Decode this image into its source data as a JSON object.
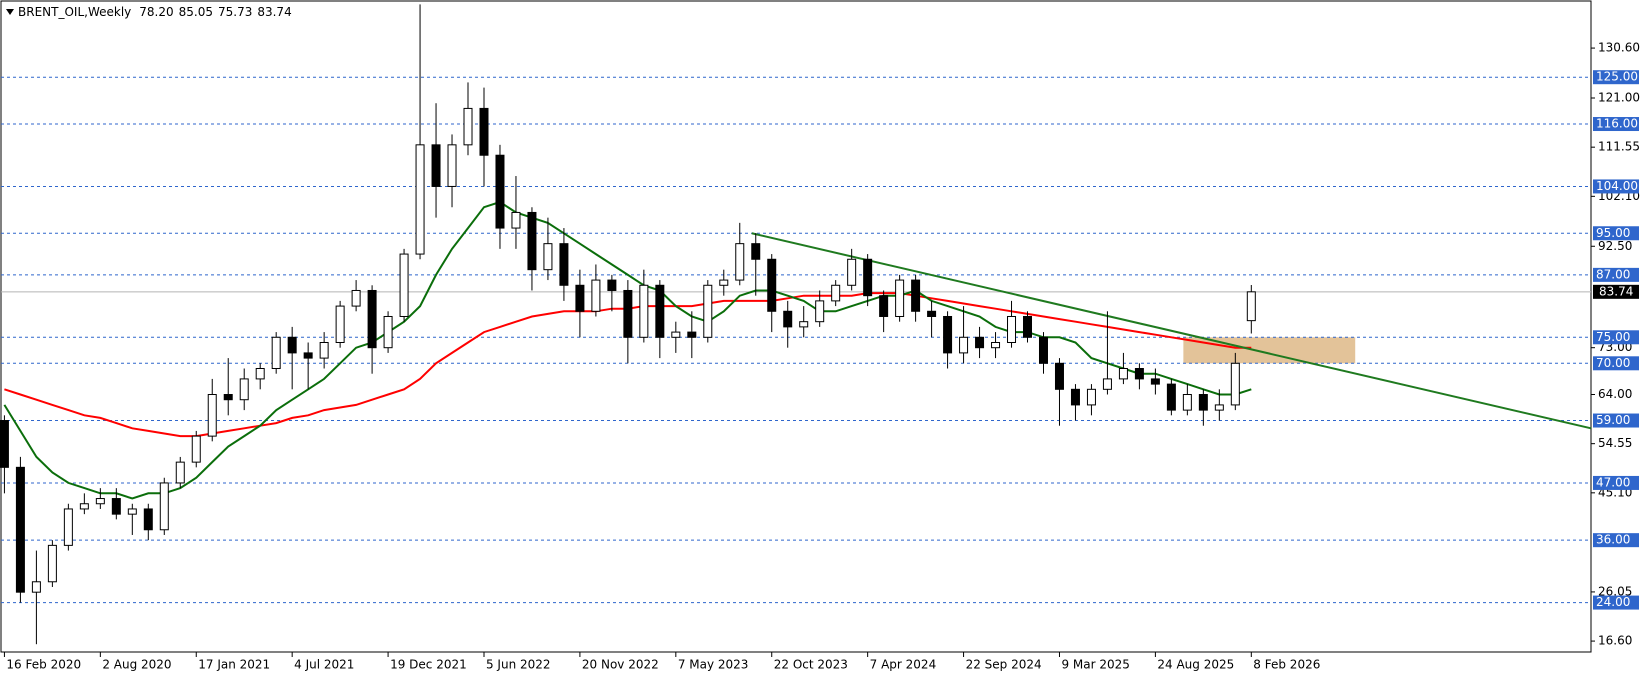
{
  "chart_data": {
    "type": "candlestick",
    "title": "BRENT_OIL,Weekly",
    "ohlc_labels": [
      "78.20",
      "85.05",
      "75.73",
      "83.74"
    ],
    "xlim": [
      "2020-02-10",
      "2027-09-26"
    ],
    "ylim": [
      14.5,
      139.65
    ],
    "xticks": [
      {
        "value": "2020-02-16",
        "label": "16 Feb 2020"
      },
      {
        "value": "2020-08-02",
        "label": "2 Aug 2020"
      },
      {
        "value": "2021-01-17",
        "label": "17 Jan 2021"
      },
      {
        "value": "2021-07-04",
        "label": "4 Jul 2021"
      },
      {
        "value": "2021-12-19",
        "label": "19 Dec 2021"
      },
      {
        "value": "2022-06-05",
        "label": "5 Jun 2022"
      },
      {
        "value": "2022-11-20",
        "label": "20 Nov 2022"
      },
      {
        "value": "2023-05-07",
        "label": "7 May 2023"
      },
      {
        "value": "2023-10-22",
        "label": "22 Oct 2023"
      },
      {
        "value": "2024-04-07",
        "label": "7 Apr 2024"
      },
      {
        "value": "2024-09-22",
        "label": "22 Sep 2024"
      },
      {
        "value": "2025-03-09",
        "label": "9 Mar 2025"
      },
      {
        "value": "2025-08-24",
        "label": "24 Aug 2025"
      },
      {
        "value": "2026-02-08",
        "label": "8 Feb 2026"
      }
    ],
    "yticks": [
      {
        "value": 130.6,
        "label": "130.60"
      },
      {
        "value": 121,
        "label": "121.00"
      },
      {
        "value": 111.55,
        "label": "111.55"
      },
      {
        "value": 102.1,
        "label": "102.10"
      },
      {
        "value": 92.5,
        "label": "92.50"
      },
      {
        "value": 73,
        "label": "73.00"
      },
      {
        "value": 64,
        "label": "64.00"
      },
      {
        "value": 54.55,
        "label": "54.55"
      },
      {
        "value": 45.1,
        "label": "45.10"
      },
      {
        "value": 26.05,
        "label": "26.05"
      },
      {
        "value": 16.6,
        "label": "16.60"
      }
    ],
    "levels": [
      {
        "value": 125,
        "label": "125.00"
      },
      {
        "value": 116,
        "label": "116.00"
      },
      {
        "value": 104,
        "label": "104.00"
      },
      {
        "value": 95,
        "label": "95.00"
      },
      {
        "value": 87,
        "label": "87.00"
      },
      {
        "value": 75,
        "label": "75.00"
      },
      {
        "value": 70,
        "label": "70.00"
      },
      {
        "value": 59,
        "label": "59.00"
      },
      {
        "value": 47,
        "label": "47.00"
      },
      {
        "value": 36,
        "label": "36.00"
      },
      {
        "value": 24,
        "label": "24.00"
      }
    ],
    "level_color": "#2f66cc",
    "last_price": {
      "value": 83.74,
      "label": "83.74"
    },
    "candles": {
      "x": [
        "2020-02-16",
        "2020-03-15",
        "2020-04-12",
        "2020-05-10",
        "2020-06-07",
        "2020-07-05",
        "2020-08-02",
        "2020-08-30",
        "2020-09-27",
        "2020-10-25",
        "2020-11-22",
        "2020-12-20",
        "2021-01-17",
        "2021-02-14",
        "2021-03-14",
        "2021-04-11",
        "2021-05-09",
        "2021-06-06",
        "2021-07-04",
        "2021-08-01",
        "2021-08-29",
        "2021-09-26",
        "2021-10-24",
        "2021-11-21",
        "2021-12-19",
        "2022-01-16",
        "2022-02-13",
        "2022-03-13",
        "2022-04-10",
        "2022-05-08",
        "2022-06-05",
        "2022-07-03",
        "2022-07-31",
        "2022-08-28",
        "2022-09-25",
        "2022-10-23",
        "2022-11-20",
        "2022-12-18",
        "2023-01-15",
        "2023-02-12",
        "2023-03-12",
        "2023-04-09",
        "2023-05-07",
        "2023-06-04",
        "2023-07-02",
        "2023-07-30",
        "2023-08-27",
        "2023-09-24",
        "2023-10-22",
        "2023-11-19",
        "2023-12-17",
        "2024-01-14",
        "2024-02-11",
        "2024-03-10",
        "2024-04-07",
        "2024-05-05",
        "2024-06-02",
        "2024-06-30",
        "2024-07-28",
        "2024-08-25",
        "2024-09-22",
        "2024-10-20",
        "2024-11-17",
        "2024-12-15",
        "2025-01-12",
        "2025-02-09",
        "2025-03-09",
        "2025-04-06",
        "2025-05-04",
        "2025-06-01",
        "2025-06-29",
        "2025-07-27",
        "2025-08-24",
        "2025-09-21",
        "2025-10-19",
        "2025-11-16",
        "2025-12-14",
        "2026-01-11",
        "2026-02-08"
      ],
      "open": [
        59,
        50,
        26,
        28,
        35,
        42,
        43,
        44,
        41,
        42,
        38,
        47,
        51,
        56,
        64,
        63,
        67,
        69,
        75,
        72,
        71,
        74,
        81,
        84,
        73,
        79,
        91,
        112,
        104,
        112,
        119,
        110,
        96,
        99,
        88,
        93,
        85,
        80,
        86,
        84,
        75,
        85,
        75,
        76,
        75,
        85,
        86,
        93,
        90,
        80,
        77,
        78,
        82,
        85,
        90,
        83,
        79,
        86,
        80,
        79,
        72,
        75,
        73,
        74,
        79,
        75,
        70,
        65,
        62,
        65,
        67,
        69,
        67,
        66,
        61,
        64,
        61,
        62,
        78.2
      ],
      "high": [
        60,
        52,
        34,
        36,
        43,
        45,
        46,
        46,
        43,
        43,
        48,
        52,
        57,
        67,
        71,
        69,
        70,
        76,
        77,
        74,
        76,
        82,
        86,
        85,
        80,
        92,
        139,
        120,
        114,
        124,
        123,
        112,
        106,
        100,
        98,
        96,
        88,
        89,
        87,
        86,
        88,
        86,
        78,
        80,
        86,
        88,
        97,
        95,
        91,
        82,
        81,
        84,
        86,
        92,
        91,
        84,
        87,
        87,
        82,
        80,
        81,
        77,
        76,
        82,
        80,
        76,
        71,
        66,
        66,
        80,
        72,
        70,
        69,
        67,
        66,
        65,
        65,
        72,
        85.05
      ],
      "low": [
        45,
        24,
        16,
        27,
        34,
        41,
        42,
        40,
        37,
        36,
        37,
        46,
        50,
        55,
        60,
        61,
        65,
        68,
        65,
        65,
        69,
        73,
        80,
        68,
        72,
        78,
        90,
        98,
        100,
        110,
        104,
        92,
        92,
        84,
        86,
        82,
        75,
        79,
        80,
        70,
        74,
        71,
        72,
        71,
        74,
        83,
        85,
        83,
        76,
        73,
        75,
        77,
        81,
        84,
        81,
        76,
        78,
        78,
        75,
        69,
        70,
        71,
        71,
        73,
        74,
        68,
        58,
        59,
        60,
        64,
        66,
        65,
        64,
        60,
        60,
        58,
        59,
        61,
        75.73
      ],
      "close": [
        50,
        26,
        28,
        35,
        42,
        43,
        44,
        41,
        42,
        38,
        47,
        51,
        56,
        64,
        63,
        67,
        69,
        75,
        72,
        71,
        74,
        81,
        84,
        73,
        79,
        91,
        112,
        104,
        112,
        119,
        110,
        96,
        99,
        88,
        93,
        85,
        80,
        86,
        84,
        75,
        85,
        75,
        76,
        75,
        85,
        86,
        93,
        90,
        80,
        77,
        78,
        82,
        85,
        90,
        83,
        79,
        86,
        80,
        79,
        72,
        75,
        73,
        74,
        79,
        75,
        70,
        65,
        62,
        65,
        67,
        69,
        67,
        66,
        61,
        64,
        61,
        62,
        70,
        83.74
      ]
    },
    "overlays": [
      {
        "color": "#ff0000",
        "values": [
          65,
          64,
          63,
          62,
          61,
          60,
          59.5,
          58.5,
          57.5,
          57,
          56.5,
          56,
          56,
          56.5,
          57,
          57.5,
          58,
          58.5,
          59.5,
          60,
          61,
          61.5,
          62,
          63,
          64,
          65,
          67,
          70,
          72,
          74,
          76,
          77,
          78,
          79,
          79.5,
          80,
          80,
          80,
          80.5,
          80.5,
          81,
          81,
          81,
          81,
          81.5,
          82,
          82,
          82,
          82,
          82.5,
          83,
          83,
          83,
          83,
          83.5,
          83.5,
          83.5,
          83,
          82.5,
          82,
          81.5,
          81,
          80.5,
          80,
          79.5,
          79,
          78.5,
          78,
          77.5,
          77,
          76.5,
          76,
          75.5,
          75,
          74.5,
          74,
          73.5,
          73,
          73
        ]
      },
      {
        "color": "#0b6e0b",
        "values": [
          62,
          57,
          52,
          49,
          47,
          46,
          45,
          45,
          44,
          45,
          45,
          46,
          48,
          51,
          54,
          56,
          58,
          61,
          63,
          65,
          67,
          70,
          73,
          74,
          76,
          78,
          81,
          87,
          92,
          96,
          100,
          101,
          99,
          98,
          97,
          95,
          93,
          91,
          89,
          87,
          85,
          84,
          81,
          79,
          78,
          80,
          83,
          84,
          84,
          83,
          82,
          80,
          80,
          81,
          82,
          83,
          83,
          84,
          82,
          81,
          80,
          79,
          77,
          76,
          76,
          75,
          75,
          74,
          71,
          70,
          69,
          68,
          68,
          67,
          66,
          65,
          64,
          64,
          65
        ]
      }
    ],
    "trendline": {
      "x": [
        "2023-09-17",
        "2027-09-26"
      ],
      "y": [
        95,
        57.5
      ],
      "color": "#1f7a1f"
    },
    "zone": {
      "x": [
        "2025-10-12",
        "2026-08-09"
      ],
      "y": [
        70,
        75
      ],
      "color": "#deb887"
    }
  }
}
